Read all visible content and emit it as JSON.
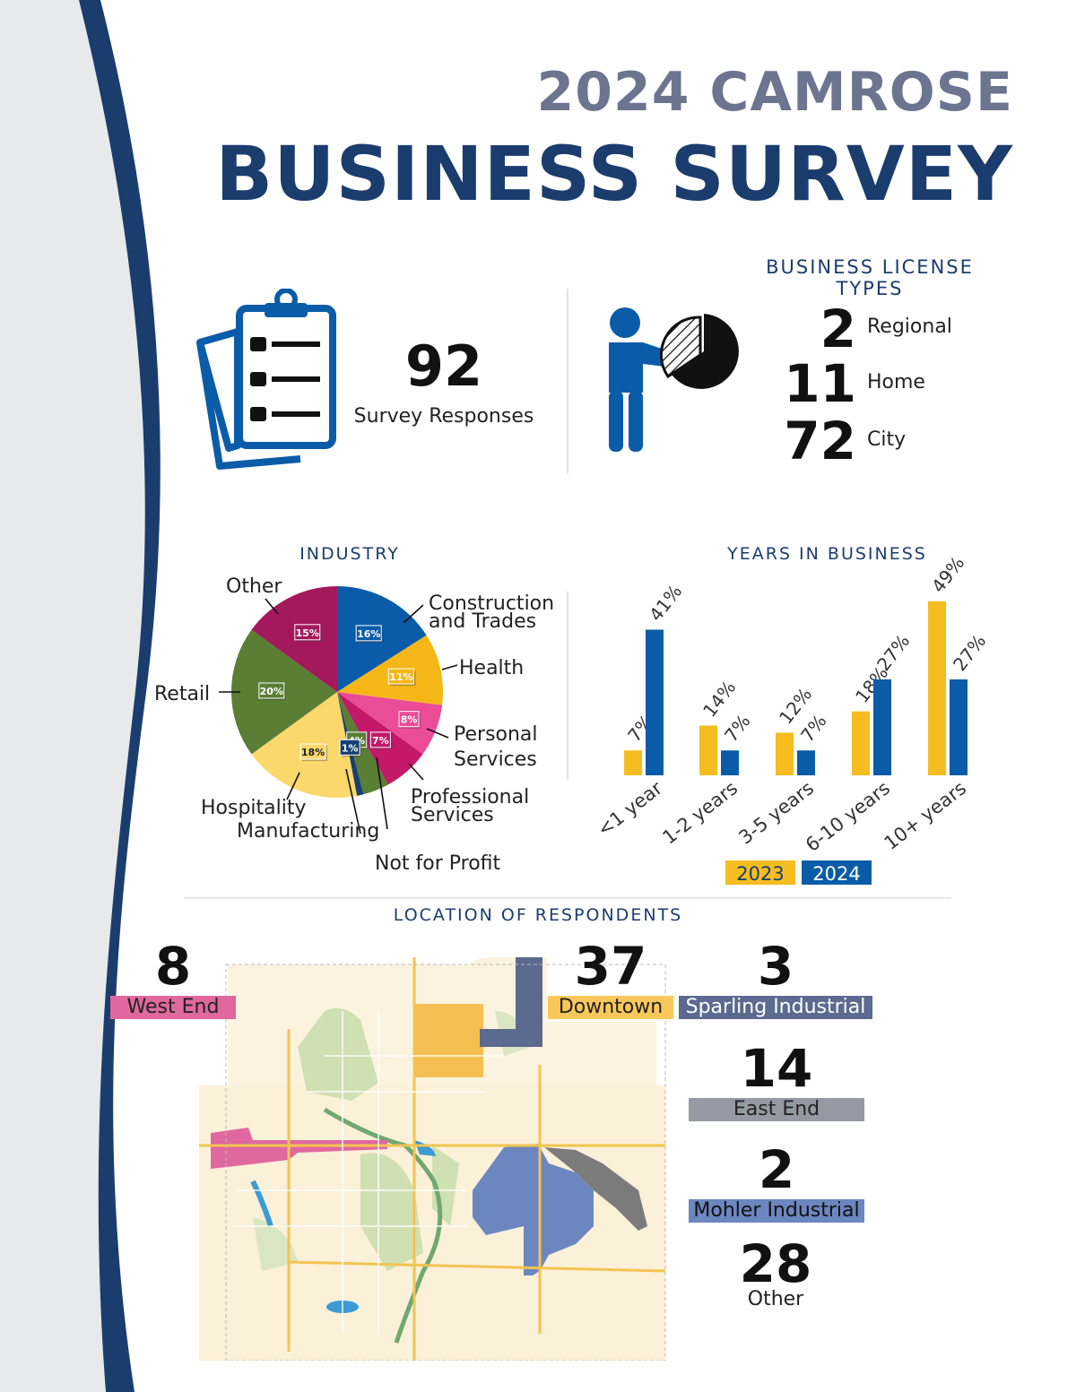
{
  "header": {
    "title_line1": "2024 CAMROSE",
    "title_line2": "BUSINESS SURVEY"
  },
  "responses": {
    "count": "92",
    "label": "Survey Responses",
    "icon": "clipboard-checklist-icon"
  },
  "licenses": {
    "title": "BUSINESS LICENSE TYPES",
    "icon": "presenter-pie-chart-icon",
    "items": [
      {
        "count": "2",
        "label": "Regional"
      },
      {
        "count": "11",
        "label": "Home"
      },
      {
        "count": "72",
        "label": "City"
      }
    ]
  },
  "chart_data": [
    {
      "type": "pie",
      "title": "INDUSTRY",
      "slices": [
        {
          "label": "Construction and Trades",
          "value": 16,
          "value_label": "16%",
          "color": "#0b5ca8"
        },
        {
          "label": "Health",
          "value": 11,
          "value_label": "11%",
          "color": "#f5b718"
        },
        {
          "label": "Personal Services",
          "value": 8,
          "value_label": "8%",
          "color": "#ea4c97"
        },
        {
          "label": "Professional Services",
          "value": 7,
          "value_label": "7%",
          "color": "#c4186a"
        },
        {
          "label": "Not for Profit",
          "value": 4,
          "value_label": "4%",
          "color": "#5a7e33"
        },
        {
          "label": "Manufacturing",
          "value": 1,
          "value_label": "1%",
          "color": "#173f73"
        },
        {
          "label": "Hospitality",
          "value": 18,
          "value_label": "18%",
          "color": "#fbd86b"
        },
        {
          "label": "Retail",
          "value": 20,
          "value_label": "20%",
          "color": "#5a7e33"
        },
        {
          "label": "Other",
          "value": 15,
          "value_label": "15%",
          "color": "#a3195b"
        }
      ]
    },
    {
      "type": "bar",
      "title": "YEARS IN BUSINESS",
      "categories": [
        "<1 year",
        "1-2 years",
        "3-5 years",
        "6-10 years",
        "10+ years"
      ],
      "series": [
        {
          "name": "2023",
          "values": [
            7,
            14,
            12,
            18,
            49
          ],
          "labels": [
            "7%",
            "14%",
            "12%",
            "18%",
            "49%"
          ],
          "color": "#f5bd1f"
        },
        {
          "name": "2024",
          "values": [
            41,
            7,
            7,
            27,
            27
          ],
          "labels": [
            "41%",
            "7%",
            "7%",
            "27%",
            "27%"
          ],
          "color": "#0b5ca8"
        }
      ],
      "ylim": [
        0,
        55
      ]
    }
  ],
  "location": {
    "title": "LOCATION OF RESPONDENTS",
    "items": [
      {
        "count": "8",
        "label": "West End",
        "color": "#e0689f"
      },
      {
        "count": "37",
        "label": "Downtown",
        "color": "#f8c85a"
      },
      {
        "count": "3",
        "label": "Sparling Industrial",
        "color": "#5b6a8e"
      },
      {
        "count": "14",
        "label": "East End",
        "color": "#9599a3"
      },
      {
        "count": "2",
        "label": "Mohler Industrial",
        "color": "#6c86bf"
      },
      {
        "count": "28",
        "label": "Other",
        "color": "#ffffff"
      }
    ]
  }
}
